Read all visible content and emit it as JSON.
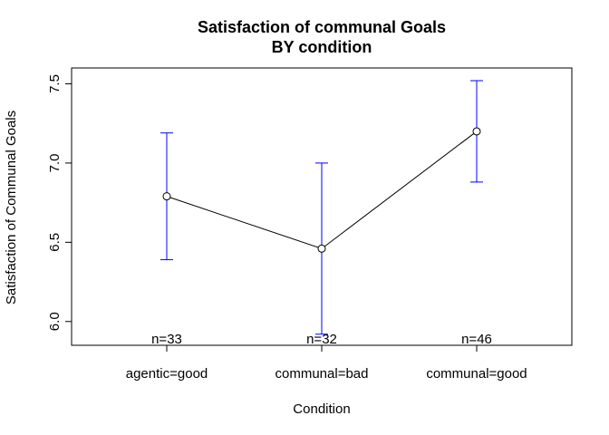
{
  "chart_data": {
    "type": "line",
    "title": [
      "Satisfaction of communal Goals",
      "BY condition"
    ],
    "xlabel": "Condition",
    "ylabel": "Satisfaction of Communal Goals",
    "categories": [
      "agentic=good",
      "communal=bad",
      "communal=good"
    ],
    "values": [
      6.79,
      6.46,
      7.2
    ],
    "error_lower": [
      6.39,
      5.92,
      6.88
    ],
    "error_upper": [
      7.19,
      7.0,
      7.52
    ],
    "n_labels": [
      "n=33",
      "n=32",
      "n=46"
    ],
    "ylim": [
      5.85,
      7.6
    ],
    "yticks": [
      6.0,
      6.5,
      7.0,
      7.5
    ],
    "ytick_labels": [
      "6.0",
      "6.5",
      "7.0",
      "7.5"
    ],
    "error_bar_color": "#0000ff",
    "line_color": "#000000",
    "grid": false,
    "legend": "none"
  }
}
